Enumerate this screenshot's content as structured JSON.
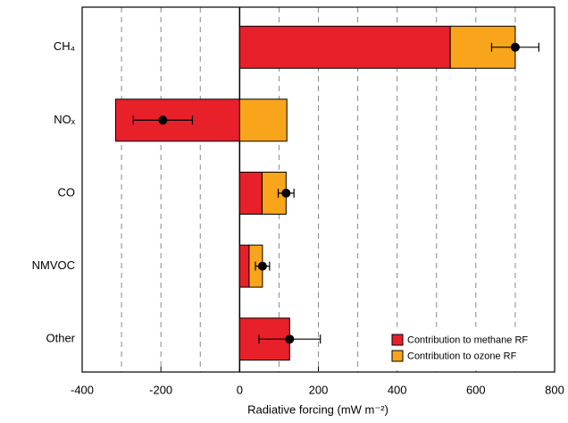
{
  "chart_data": {
    "type": "bar",
    "orientation": "horizontal",
    "stacked": true,
    "x_label": "Radiative forcing (mW m⁻²)",
    "categories": [
      "CH₄",
      "NOₓ",
      "CO",
      "NMVOC",
      "Other"
    ],
    "series": [
      {
        "name": "Contribution to methane RF",
        "color": "#e8202a",
        "values": [
          535,
          -315,
          57,
          24,
          127
        ]
      },
      {
        "name": "Contribution to ozone RF",
        "color": "#f8a51c",
        "values": [
          165,
          120,
          61,
          34,
          0
        ]
      }
    ],
    "net": {
      "color": "#000000",
      "values": [
        700,
        -195,
        118,
        58,
        127
      ],
      "errors": [
        60,
        75,
        20,
        18,
        78
      ]
    },
    "xlim": [
      -400,
      800
    ],
    "xticks": [
      -400,
      -200,
      0,
      200,
      400,
      600,
      800
    ],
    "xminorticks": [
      -300,
      -100,
      100,
      300,
      500,
      700
    ],
    "grid": true,
    "legend": "lower right"
  }
}
